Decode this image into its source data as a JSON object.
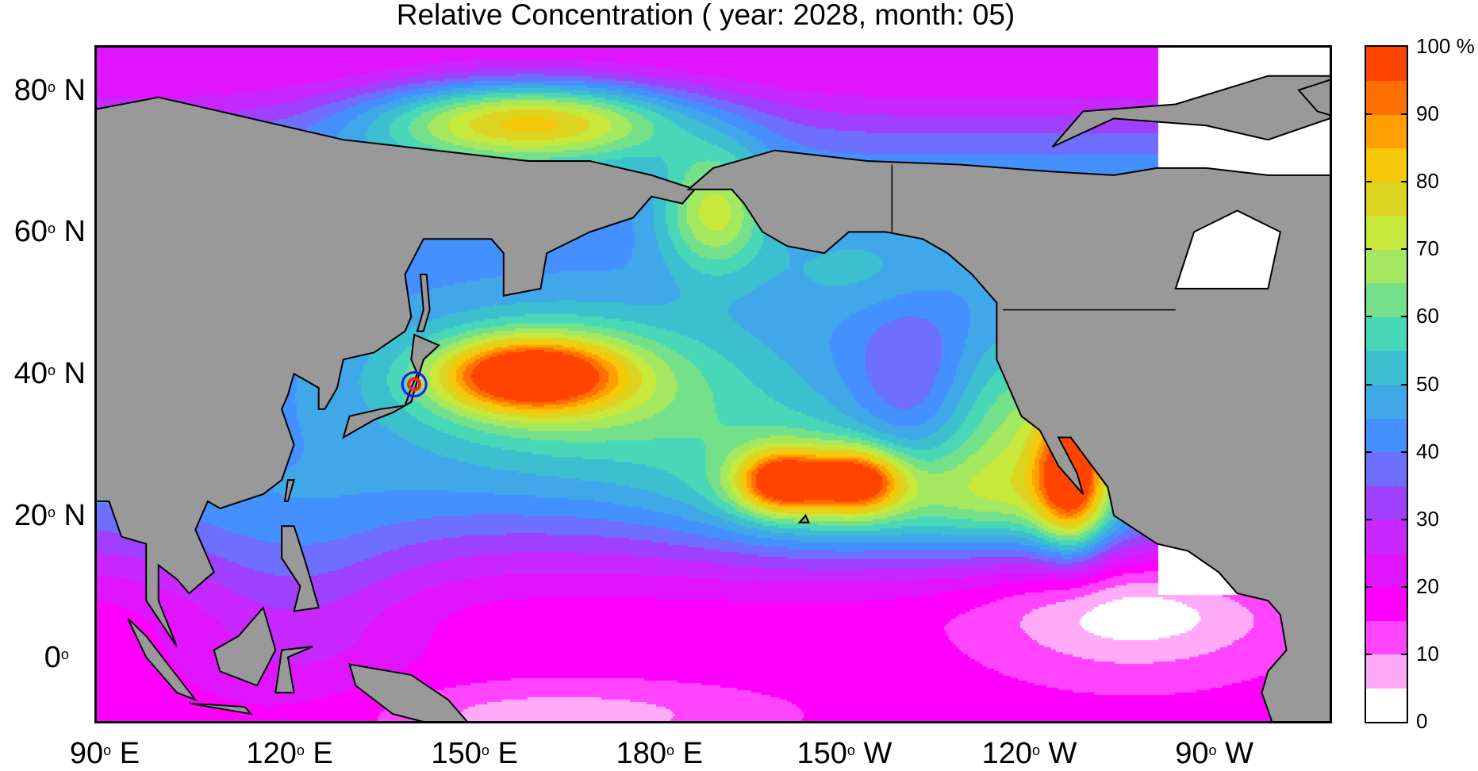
{
  "title": "Relative Concentration ( year: 2028, month: 05)",
  "map_data": {
    "type": "heatmap",
    "lon_range_deg_east": [
      90,
      290
    ],
    "lat_range_deg": [
      -9,
      86
    ],
    "x_ticks": [
      {
        "lon": 90,
        "label": "90",
        "deg": "o",
        "hemi": "E"
      },
      {
        "lon": 120,
        "label": "120",
        "deg": "o",
        "hemi": "E"
      },
      {
        "lon": 150,
        "label": "150",
        "deg": "o",
        "hemi": "E"
      },
      {
        "lon": 180,
        "label": "180",
        "deg": "o",
        "hemi": "E"
      },
      {
        "lon": 210,
        "label": "150",
        "deg": "o",
        "hemi": "W"
      },
      {
        "lon": 240,
        "label": "120",
        "deg": "o",
        "hemi": "W"
      },
      {
        "lon": 270,
        "label": "90",
        "deg": "o",
        "hemi": "W"
      }
    ],
    "y_ticks": [
      {
        "lat": 80,
        "label": "80",
        "deg": "o",
        "hemi": "N"
      },
      {
        "lat": 60,
        "label": "60",
        "deg": "o",
        "hemi": "N"
      },
      {
        "lat": 40,
        "label": "40",
        "deg": "o",
        "hemi": "N"
      },
      {
        "lat": 20,
        "label": "20",
        "deg": "o",
        "hemi": "N"
      },
      {
        "lat": 0,
        "label": "0",
        "deg": "o",
        "hemi": ""
      }
    ],
    "source_marker": {
      "lon": 141.5,
      "lat": 38.5,
      "outer_color": "#1a1aff",
      "inner_color": "#ff2020"
    },
    "land_color": "#999999",
    "features": [
      "Kuroshio extension maximum ~90-95%",
      "Hawaii maxima ~85%",
      "Baja California coastal maximum ~85%",
      "Chukchi Sea maximum ~80%"
    ]
  },
  "colorbar": {
    "min": 0,
    "max": 100,
    "step": 5,
    "unit": "%",
    "tick_labels": [
      "0",
      "10",
      "20",
      "30",
      "40",
      "50",
      "60",
      "70",
      "80",
      "90",
      "100 %"
    ],
    "colors": [
      "#ffffff",
      "#ffaaf8",
      "#ff44ff",
      "#ff00ff",
      "#e014ff",
      "#c828ff",
      "#9f40ff",
      "#6e6eff",
      "#4590ff",
      "#40a8e8",
      "#3cc0d0",
      "#48d8b8",
      "#74e08a",
      "#a4e860",
      "#c8e83c",
      "#dcd420",
      "#f6c80a",
      "#ffa000",
      "#ff7000",
      "#ff4400"
    ]
  }
}
